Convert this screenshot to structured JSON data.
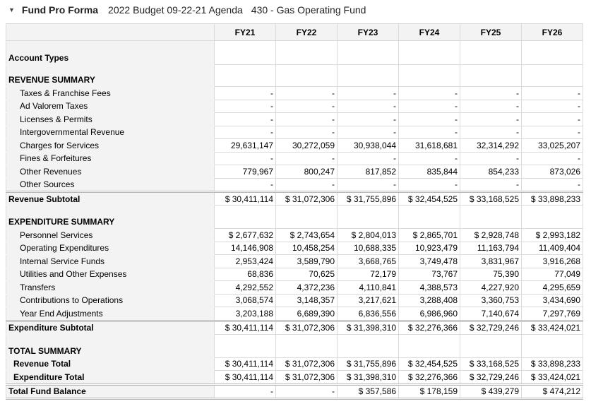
{
  "header": {
    "title": "Fund Pro Forma",
    "budget": "2022 Budget 09-22-21 Agenda",
    "fund": "430 - Gas Operating Fund"
  },
  "columns": [
    "FY21",
    "FY22",
    "FY23",
    "FY24",
    "FY25",
    "FY26"
  ],
  "rows": [
    {
      "type": "sec",
      "h": 31,
      "label": "Account Types",
      "values": [
        "",
        "",
        "",
        "",
        "",
        ""
      ]
    },
    {
      "type": "sec",
      "h": 28,
      "label": "REVENUE SUMMARY",
      "values": [
        "",
        "",
        "",
        "",
        "",
        ""
      ]
    },
    {
      "type": "item",
      "label": "Taxes & Franchise Fees",
      "values": [
        "-",
        "-",
        "-",
        "-",
        "-",
        "-"
      ]
    },
    {
      "type": "item",
      "label": "Ad Valorem Taxes",
      "values": [
        "-",
        "-",
        "-",
        "-",
        "-",
        "-"
      ]
    },
    {
      "type": "item",
      "label": "Licenses & Permits",
      "values": [
        "-",
        "-",
        "-",
        "-",
        "-",
        "-"
      ]
    },
    {
      "type": "item",
      "label": "Intergovernmental Revenue",
      "values": [
        "-",
        "-",
        "-",
        "-",
        "-",
        "-"
      ]
    },
    {
      "type": "item",
      "label": "Charges for Services",
      "values": [
        "29,631,147",
        "30,272,059",
        "30,938,044",
        "31,618,681",
        "32,314,292",
        "33,025,207"
      ]
    },
    {
      "type": "item",
      "label": "Fines & Forfeitures",
      "values": [
        "-",
        "-",
        "-",
        "-",
        "-",
        "-"
      ]
    },
    {
      "type": "item",
      "label": "Other Revenues",
      "values": [
        "779,967",
        "800,247",
        "817,852",
        "835,844",
        "854,233",
        "873,026"
      ]
    },
    {
      "type": "item",
      "label": "Other Sources",
      "values": [
        "-",
        "-",
        "-",
        "-",
        "-",
        "-"
      ]
    },
    {
      "type": "sub",
      "label": "Revenue Subtotal",
      "values": [
        "$ 30,411,114",
        "$ 31,072,306",
        "$ 31,755,896",
        "$ 32,454,525",
        "$ 33,168,525",
        "$ 33,898,233"
      ]
    },
    {
      "type": "sec",
      "h": 30,
      "label": "EXPENDITURE SUMMARY",
      "values": [
        "",
        "",
        "",
        "",
        "",
        ""
      ]
    },
    {
      "type": "item",
      "label": "Personnel Services",
      "values": [
        "$ 2,677,632",
        "$ 2,743,654",
        "$ 2,804,013",
        "$ 2,865,701",
        "$ 2,928,748",
        "$ 2,993,182"
      ]
    },
    {
      "type": "item",
      "label": "Operating Expenditures",
      "values": [
        "14,146,908",
        "10,458,254",
        "10,688,335",
        "10,923,479",
        "11,163,794",
        "11,409,404"
      ]
    },
    {
      "type": "item",
      "label": "Internal Service Funds",
      "values": [
        "2,953,424",
        "3,589,790",
        "3,668,765",
        "3,749,478",
        "3,831,967",
        "3,916,268"
      ]
    },
    {
      "type": "item",
      "label": "Utilities and Other Expenses",
      "values": [
        "68,836",
        "70,625",
        "72,179",
        "73,767",
        "75,390",
        "77,049"
      ]
    },
    {
      "type": "item",
      "label": "Transfers",
      "values": [
        "4,292,552",
        "4,372,236",
        "4,110,841",
        "4,388,573",
        "4,227,920",
        "4,295,659"
      ]
    },
    {
      "type": "item",
      "label": "Contributions to Operations",
      "values": [
        "3,068,574",
        "3,148,357",
        "3,217,621",
        "3,288,408",
        "3,360,753",
        "3,434,690"
      ]
    },
    {
      "type": "item",
      "label": "Year End Adjustments",
      "values": [
        "3,203,188",
        "6,689,390",
        "6,836,556",
        "6,986,960",
        "7,140,674",
        "7,297,769"
      ]
    },
    {
      "type": "sub",
      "label": "Expenditure Subtotal",
      "values": [
        "$ 30,411,114",
        "$ 31,072,306",
        "$ 31,398,310",
        "$ 32,276,366",
        "$ 32,729,246",
        "$ 33,424,021"
      ]
    },
    {
      "type": "sec",
      "h": 30,
      "label": "TOTAL SUMMARY",
      "values": [
        "",
        "",
        "",
        "",
        "",
        ""
      ]
    },
    {
      "type": "item tot",
      "label": "Revenue Total",
      "values": [
        "$ 30,411,114",
        "$ 31,072,306",
        "$ 31,755,896",
        "$ 32,454,525",
        "$ 33,168,525",
        "$ 33,898,233"
      ]
    },
    {
      "type": "item tot",
      "label": "Expenditure Total",
      "values": [
        "$ 30,411,114",
        "$ 31,072,306",
        "$ 31,398,310",
        "$ 32,276,366",
        "$ 32,729,246",
        "$ 33,424,021"
      ]
    },
    {
      "type": "fin",
      "label": "Total Fund Balance",
      "values": [
        "-",
        "-",
        "$ 357,586",
        "$ 178,159",
        "$ 439,279",
        "$ 474,212"
      ]
    }
  ]
}
